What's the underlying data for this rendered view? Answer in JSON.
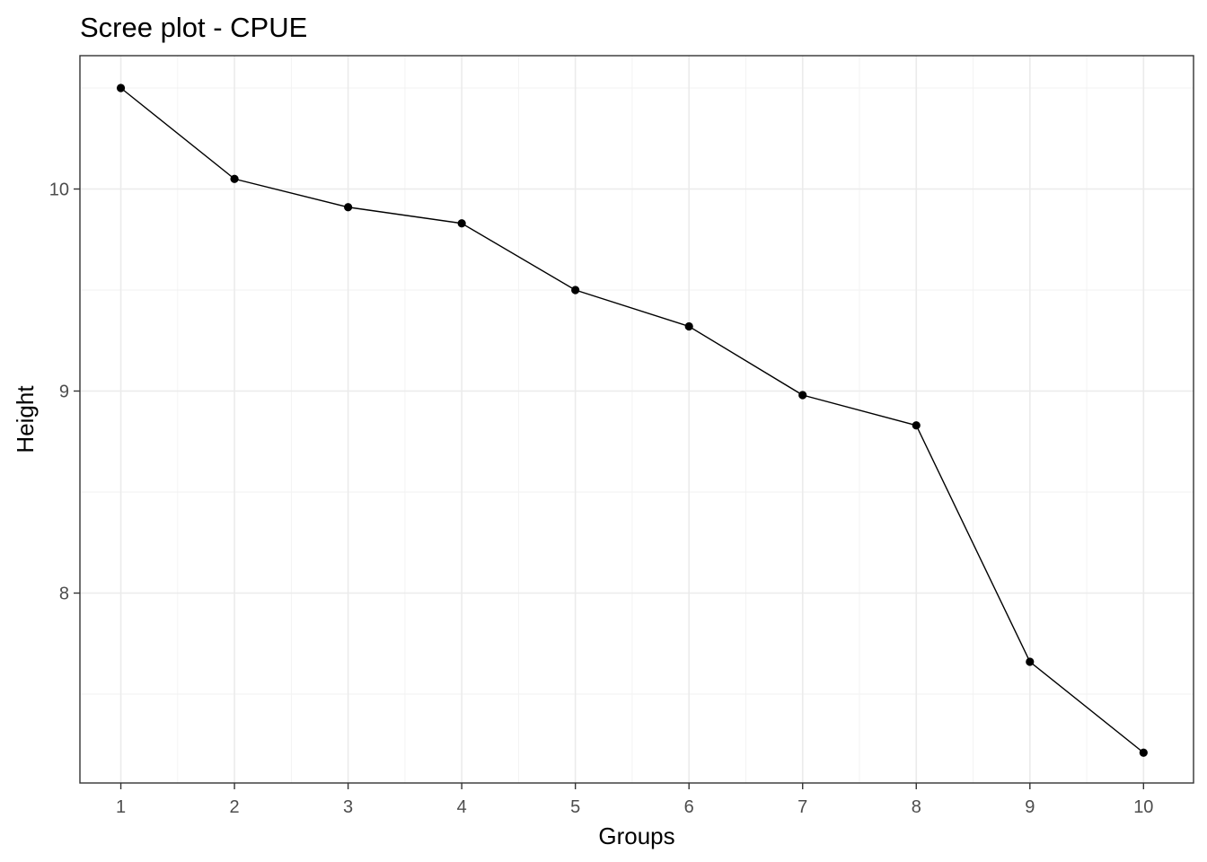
{
  "chart_data": {
    "type": "line",
    "title": "Scree plot - CPUE",
    "xlabel": "Groups",
    "ylabel": "Height",
    "x": [
      1,
      2,
      3,
      4,
      5,
      6,
      7,
      8,
      9,
      10
    ],
    "series": [
      {
        "values": [
          10.5,
          10.05,
          9.91,
          9.83,
          9.5,
          9.32,
          8.98,
          8.83,
          7.66,
          7.21
        ]
      }
    ],
    "x_ticks": [
      "1",
      "2",
      "3",
      "4",
      "5",
      "6",
      "7",
      "8",
      "9",
      "10"
    ],
    "y_ticks": [
      8,
      9,
      10
    ],
    "y_tick_labels": [
      "8",
      "9",
      "10"
    ],
    "xlim": [
      0.64,
      10.44
    ],
    "ylim": [
      7.06,
      10.66
    ],
    "grid": true,
    "markers": true,
    "legend": "none",
    "line_color": "#000000",
    "theme": "bw"
  }
}
